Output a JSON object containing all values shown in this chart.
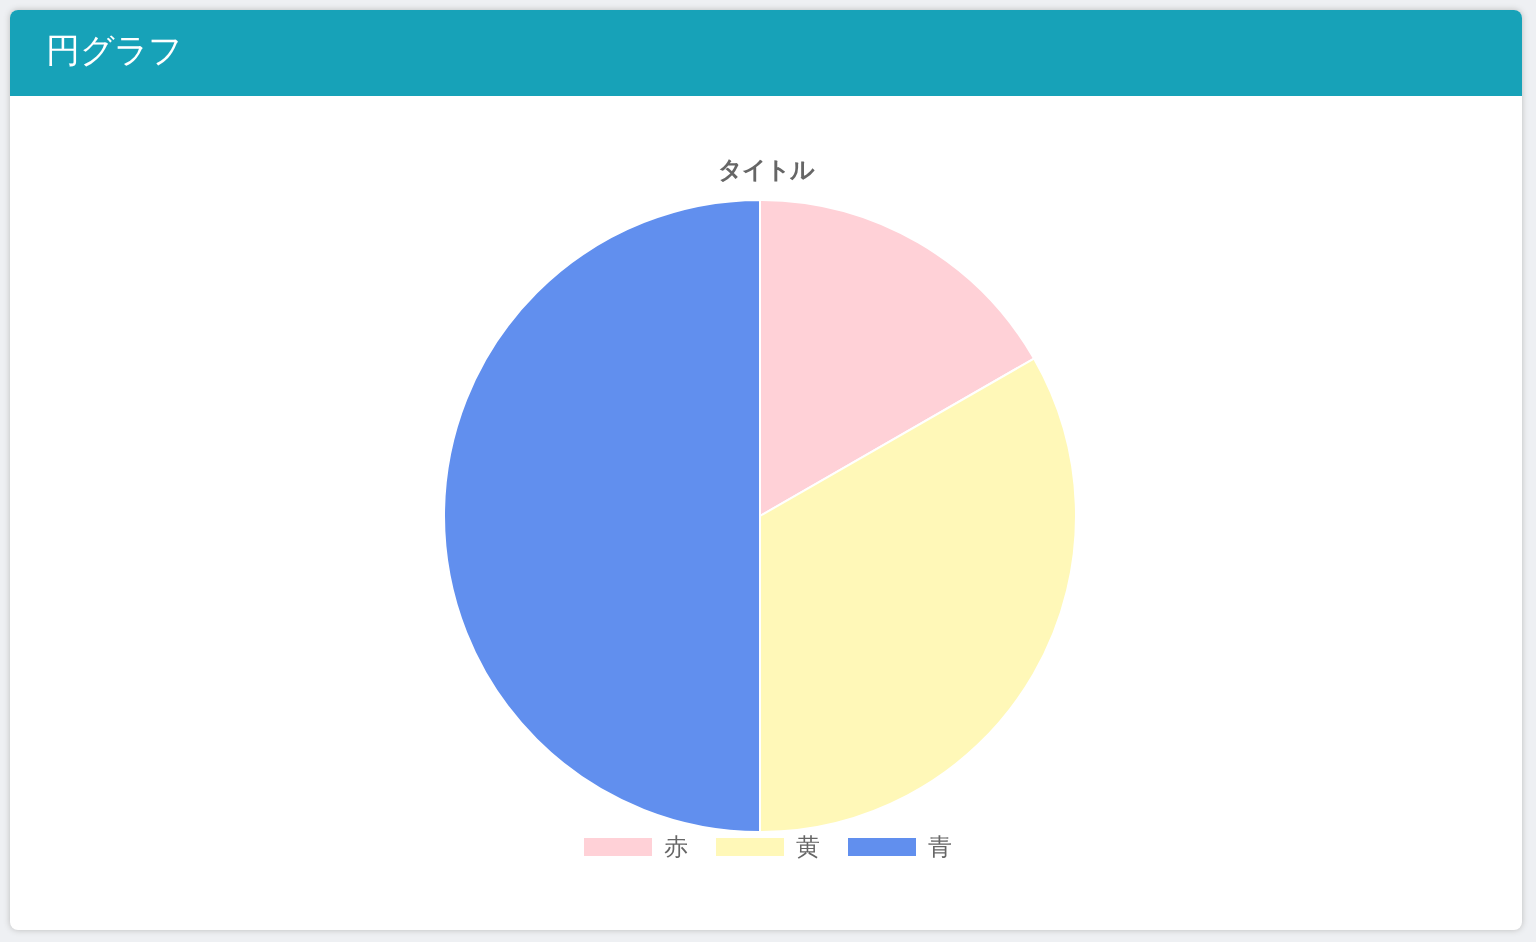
{
  "chart_data": {
    "type": "pie",
    "title": "円グラフ",
    "subtitle": "タイトル",
    "categories": [
      "赤",
      "黄",
      "青"
    ],
    "values": [
      16.7,
      33.3,
      50
    ],
    "colors": [
      "#ffd1d7",
      "#fff8b8",
      "#618fee"
    ],
    "legend": "bottom"
  }
}
